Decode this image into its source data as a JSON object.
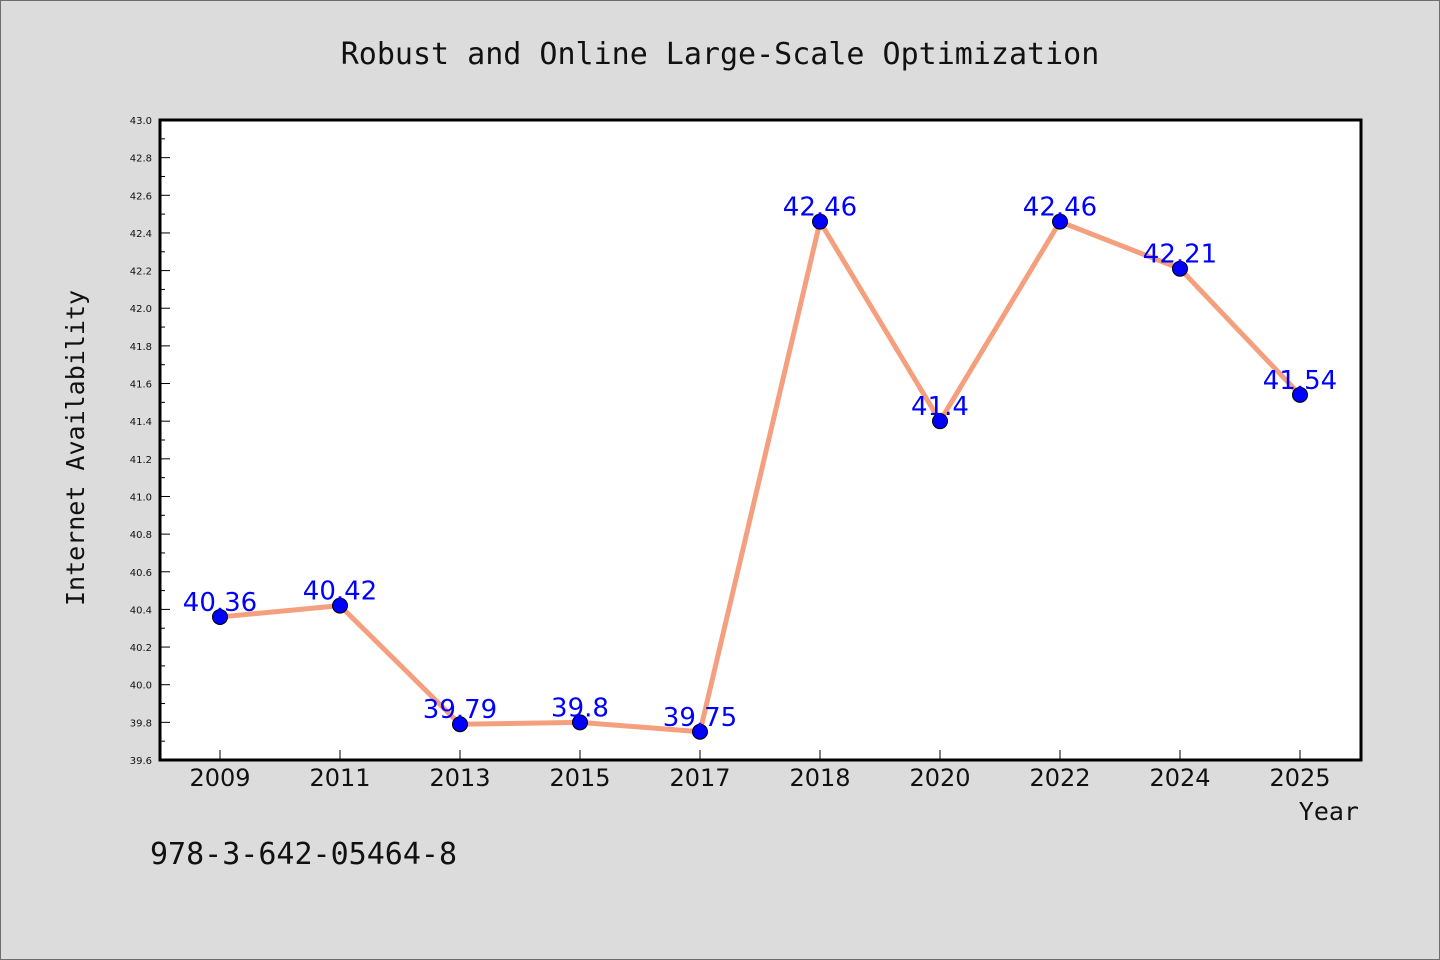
{
  "footer_text": "978-3-642-05464-8",
  "chart_data": {
    "type": "line",
    "title": "Robust and Online Large-Scale Optimization",
    "xlabel": "Year",
    "ylabel": "Internet Availability",
    "categories": [
      "2009",
      "2011",
      "2013",
      "2015",
      "2017",
      "2018",
      "2020",
      "2022",
      "2024",
      "2025"
    ],
    "series": [
      {
        "values": [
          40.36,
          40.42,
          39.79,
          39.8,
          39.75,
          42.46,
          41.4,
          42.46,
          42.21,
          41.54
        ],
        "labels": [
          "40.36",
          "40.42",
          "39.79",
          "39.8",
          "39.75",
          "42.46",
          "41.4",
          "42.46",
          "42.21",
          "41.54"
        ]
      }
    ],
    "ylim": [
      39.6,
      43.0
    ],
    "yticks": [
      "39.6",
      "39.8",
      "40.0",
      "40.2",
      "40.4",
      "40.6",
      "40.8",
      "41.0",
      "41.2",
      "41.4",
      "41.6",
      "41.8",
      "42.0",
      "42.2",
      "42.4",
      "42.6",
      "42.8",
      "43.0"
    ],
    "grid": false,
    "legend": "none",
    "colors": {
      "line": "#f4a07e",
      "marker": "#0000ff",
      "data_label": "#0000ff",
      "plot_background": "#ffffff",
      "page_background": "#dcdcdc"
    }
  }
}
